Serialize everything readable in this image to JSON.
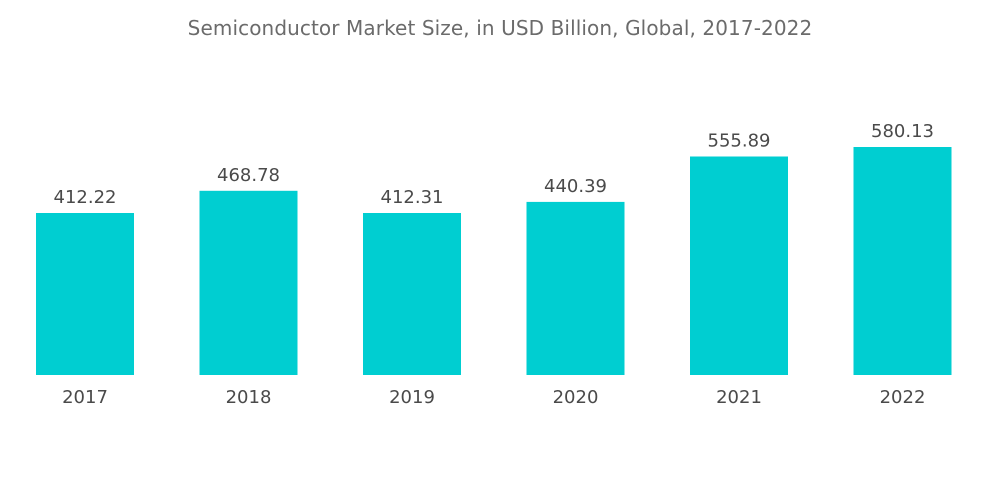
{
  "chart_data": {
    "type": "bar",
    "title": "Semiconductor Market Size, in USD Billion, Global, 2017-2022",
    "categories": [
      "2017",
      "2018",
      "2019",
      "2020",
      "2021",
      "2022"
    ],
    "values": [
      412.22,
      468.78,
      412.31,
      440.39,
      555.89,
      580.13
    ],
    "data_labels": [
      "412.22",
      "468.78",
      "412.31",
      "440.39",
      "555.89",
      "580.13"
    ],
    "xlabel": "",
    "ylabel": "",
    "ylim": [
      0,
      580.13
    ],
    "grid": false,
    "legend": "none",
    "bar_color": "#00ced1"
  }
}
